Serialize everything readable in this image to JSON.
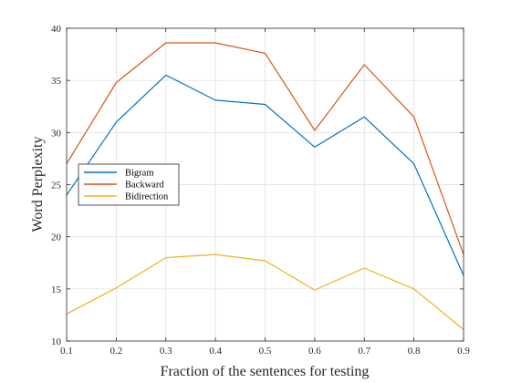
{
  "chart_data": {
    "type": "line",
    "x": [
      0.1,
      0.2,
      0.3,
      0.4,
      0.5,
      0.6,
      0.7,
      0.8,
      0.9
    ],
    "x_tick_labels": [
      "0.1",
      "0.2",
      "0.3",
      "0.4",
      "0.5",
      "0.6",
      "0.7",
      "0.8",
      "0.9"
    ],
    "y_tick_values": [
      10,
      15,
      20,
      25,
      30,
      35,
      40
    ],
    "y_tick_labels": [
      "10",
      "15",
      "20",
      "25",
      "30",
      "35",
      "40"
    ],
    "xlim": [
      0.1,
      0.9
    ],
    "ylim": [
      10,
      40
    ],
    "xlabel": "Fraction of the sentences for testing",
    "ylabel": "Word Perplexity",
    "title": "",
    "grid": true,
    "legend_position": "middle-left",
    "series": [
      {
        "name": "Bigram",
        "color": "#0072bd",
        "values": [
          24.0,
          31.0,
          35.5,
          33.1,
          32.7,
          28.6,
          31.5,
          27.0,
          16.3
        ]
      },
      {
        "name": "Backward",
        "color": "#d95319",
        "values": [
          27.0,
          34.8,
          38.6,
          38.6,
          37.6,
          30.2,
          36.5,
          31.5,
          18.3
        ]
      },
      {
        "name": "Bidirection",
        "color": "#edb120",
        "values": [
          12.6,
          15.1,
          18.0,
          18.3,
          17.7,
          14.9,
          17.0,
          15.0,
          11.1
        ]
      }
    ]
  }
}
